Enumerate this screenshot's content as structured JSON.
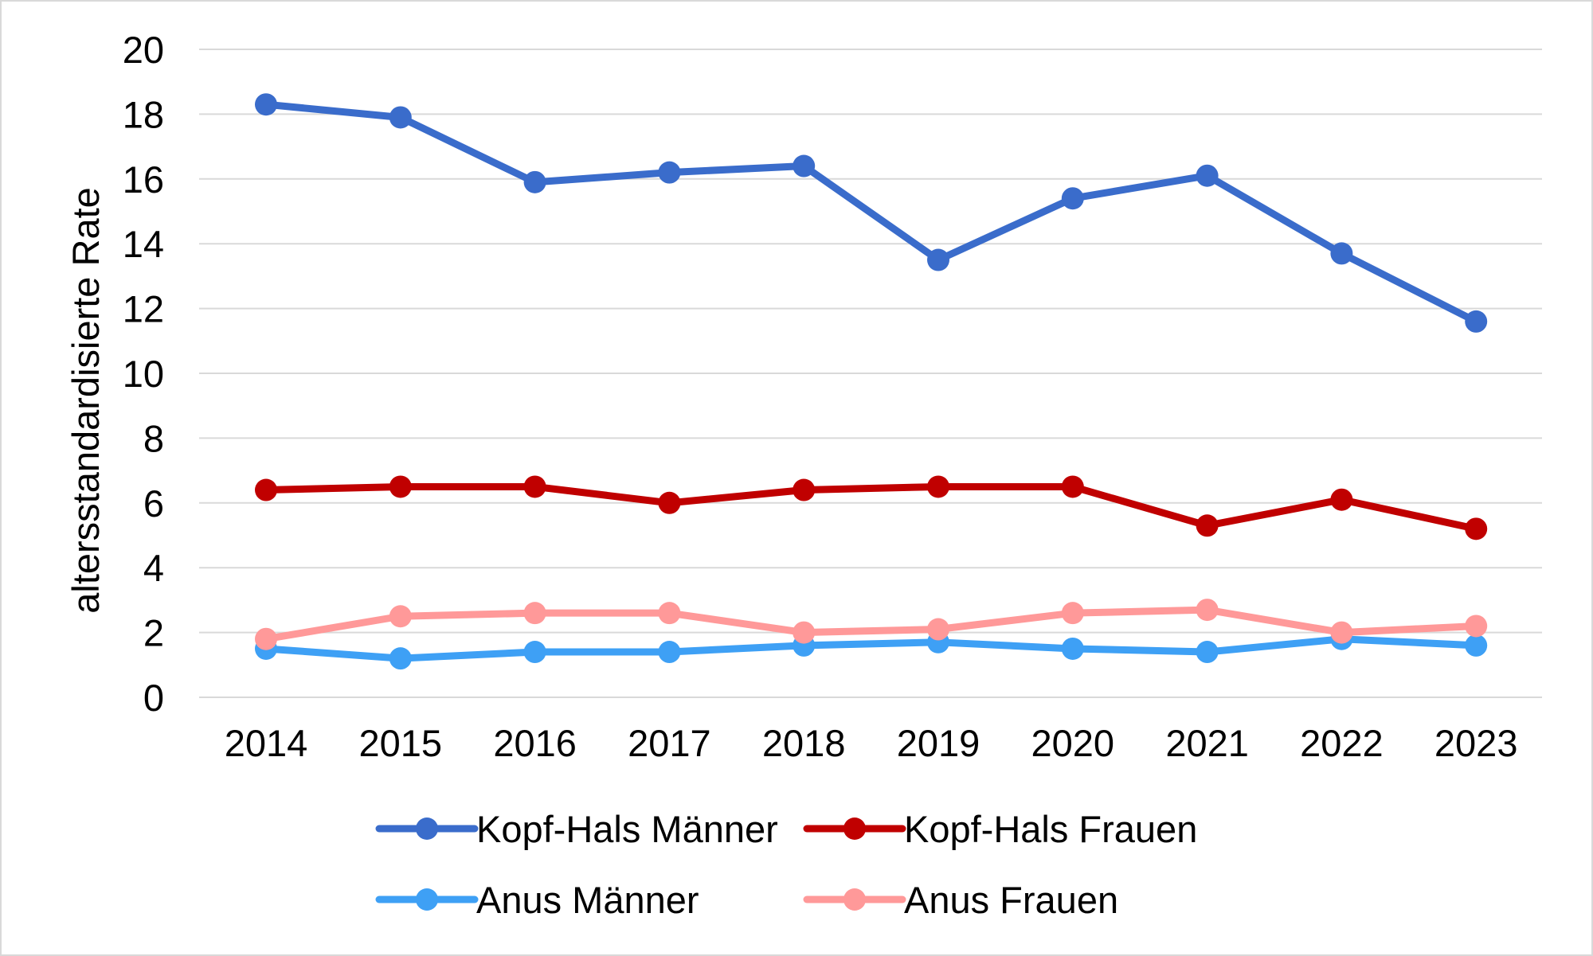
{
  "chart_data": {
    "type": "line",
    "title": "",
    "xlabel": "",
    "ylabel": "altersstandardisierte Rate",
    "categories": [
      "2014",
      "2015",
      "2016",
      "2017",
      "2018",
      "2019",
      "2020",
      "2021",
      "2022",
      "2023"
    ],
    "ylim": [
      0,
      20
    ],
    "yticks": [
      0,
      2,
      4,
      6,
      8,
      10,
      12,
      14,
      16,
      18,
      20
    ],
    "grid": true,
    "legend_position": "bottom",
    "series": [
      {
        "name": "Kopf-Hals Männer",
        "color": "#3a6ccb",
        "values": [
          18.3,
          17.9,
          15.9,
          16.2,
          16.4,
          13.5,
          15.4,
          16.1,
          13.7,
          11.6
        ]
      },
      {
        "name": "Kopf-Hals Frauen",
        "color": "#c00000",
        "values": [
          6.4,
          6.5,
          6.5,
          6.0,
          6.4,
          6.5,
          6.5,
          5.3,
          6.1,
          5.2
        ]
      },
      {
        "name": "Anus Männer",
        "color": "#3ea0f5",
        "values": [
          1.5,
          1.2,
          1.4,
          1.4,
          1.6,
          1.7,
          1.5,
          1.4,
          1.8,
          1.6
        ]
      },
      {
        "name": "Anus Frauen",
        "color": "#ff9999",
        "values": [
          1.8,
          2.5,
          2.6,
          2.6,
          2.0,
          2.1,
          2.6,
          2.7,
          2.0,
          2.2
        ]
      }
    ]
  }
}
